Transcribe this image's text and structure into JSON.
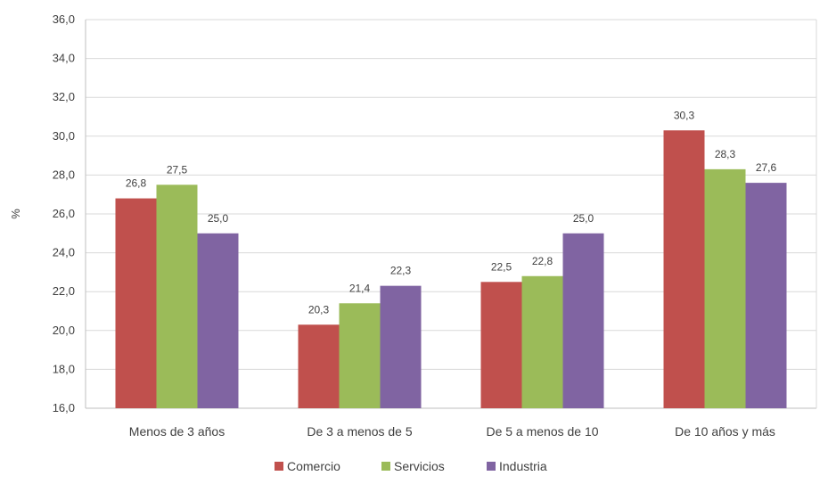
{
  "chart_data": {
    "type": "bar",
    "ylabel": "%",
    "ylim": [
      16,
      36
    ],
    "yticks": [
      "16,0",
      "18,0",
      "20,0",
      "22,0",
      "24,0",
      "26,0",
      "28,0",
      "30,0",
      "32,0",
      "34,0",
      "36,0"
    ],
    "categories": [
      "Menos de 3 años",
      "De 3 a menos de 5",
      "De 5 a menos de 10",
      "De 10 años y más"
    ],
    "series": [
      {
        "name": "Comercio",
        "color": "#c0504d",
        "values": [
          26.8,
          20.3,
          22.5,
          30.3
        ],
        "labels": [
          "26,8",
          "20,3",
          "22,5",
          "30,3"
        ]
      },
      {
        "name": "Servicios",
        "color": "#9bbb59",
        "values": [
          27.5,
          21.4,
          22.8,
          28.3
        ],
        "labels": [
          "27,5",
          "21,4",
          "22,8",
          "28,3"
        ]
      },
      {
        "name": "Industria",
        "color": "#8064a2",
        "values": [
          25.0,
          22.3,
          25.0,
          27.6
        ],
        "labels": [
          "25,0",
          "22,3",
          "25,0",
          "27,6"
        ]
      }
    ],
    "grid": true,
    "legend_position": "bottom"
  }
}
